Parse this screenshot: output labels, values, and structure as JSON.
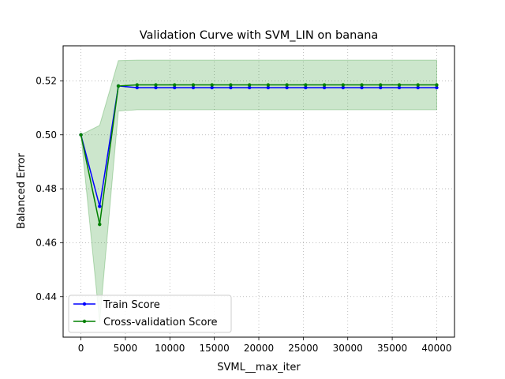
{
  "chart_data": {
    "type": "line",
    "title": "Validation Curve with SVM_LIN on banana",
    "xlabel": "SVML__max_iter",
    "ylabel": "Balanced Error",
    "xlim": [
      -2000,
      42000
    ],
    "ylim": [
      0.425,
      0.533
    ],
    "xticks": [
      0,
      5000,
      10000,
      15000,
      20000,
      25000,
      30000,
      35000,
      40000
    ],
    "yticks": [
      0.44,
      0.46,
      0.48,
      0.5,
      0.52
    ],
    "ytick_labels": [
      "0.44",
      "0.46",
      "0.48",
      "0.50",
      "0.52"
    ],
    "grid": true,
    "legend_position": "bottom-left",
    "x": [
      1,
      2106,
      4211,
      6316,
      8421,
      10527,
      12632,
      14737,
      16842,
      18948,
      21053,
      23158,
      25263,
      27369,
      29474,
      31579,
      33684,
      35790,
      37895,
      40000
    ],
    "series": [
      {
        "name": "Train Score",
        "color": "#0000ff",
        "values": [
          0.5,
          0.4735,
          0.5181,
          0.5175,
          0.5175,
          0.5175,
          0.5175,
          0.5175,
          0.5175,
          0.5175,
          0.5175,
          0.5175,
          0.5175,
          0.5175,
          0.5175,
          0.5175,
          0.5175,
          0.5175,
          0.5175,
          0.5175
        ]
      },
      {
        "name": "Cross-validation Score",
        "color": "#008000",
        "values": [
          0.5,
          0.4668,
          0.5181,
          0.5185,
          0.5185,
          0.5185,
          0.5185,
          0.5185,
          0.5185,
          0.5185,
          0.5185,
          0.5185,
          0.5185,
          0.5185,
          0.5185,
          0.5185,
          0.5185,
          0.5185,
          0.5185,
          0.5185
        ],
        "band_color": "#008000",
        "band_lower": [
          0.5,
          0.4305,
          0.5088,
          0.5093,
          0.5093,
          0.5093,
          0.5093,
          0.5093,
          0.5093,
          0.5093,
          0.5093,
          0.5093,
          0.5093,
          0.5093,
          0.5093,
          0.5093,
          0.5093,
          0.5093,
          0.5093,
          0.5093
        ],
        "band_upper": [
          0.5,
          0.5035,
          0.5275,
          0.5277,
          0.5277,
          0.5277,
          0.5277,
          0.5277,
          0.5277,
          0.5277,
          0.5277,
          0.5277,
          0.5277,
          0.5277,
          0.5277,
          0.5277,
          0.5277,
          0.5277,
          0.5277,
          0.5277
        ]
      }
    ]
  }
}
